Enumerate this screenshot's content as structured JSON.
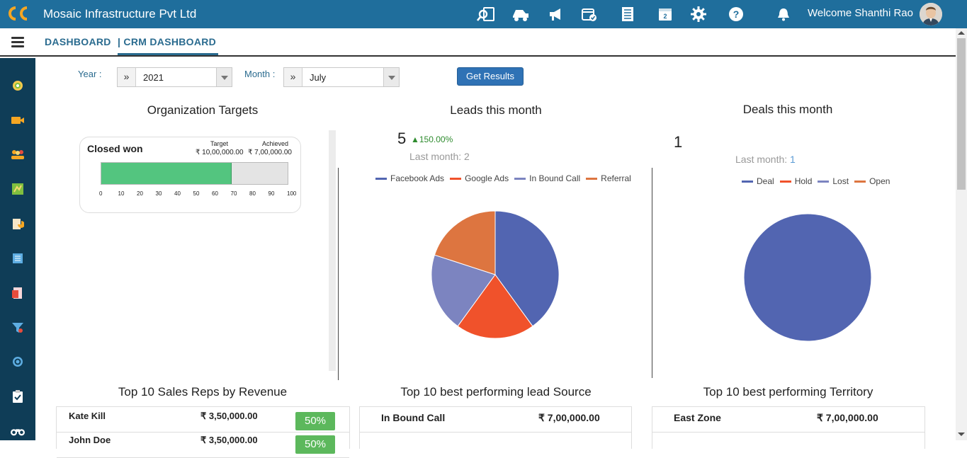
{
  "app": {
    "company": "Mosaic Infrastructure Pvt Ltd",
    "welcome": "Welcome Shanthi Rao"
  },
  "topbar_icons": [
    "search-document-icon",
    "truck-icon",
    "megaphone-icon",
    "calendar-check-icon",
    "list-icon",
    "calendar-icon",
    "gear-icon",
    "help-icon",
    "bell-icon"
  ],
  "nav": {
    "dashboard": "DASHBOARD",
    "crm_dashboard": "| CRM DASHBOARD"
  },
  "filters": {
    "year_label": "Year :",
    "year_value": "2021",
    "month_label": "Month :",
    "month_value": "July",
    "submit": "Get Results",
    "prefix_glyph": "»"
  },
  "org_targets": {
    "title": "Organization Targets",
    "card_title": "Closed won",
    "target_label": "Target",
    "achieved_label": "Achieved",
    "target_value": "₹ 10,00,000.00",
    "achieved_value": "₹ 7,00,000.00",
    "progress_percent": 70,
    "ticks": [
      "0",
      "10",
      "20",
      "30",
      "40",
      "50",
      "60",
      "70",
      "80",
      "90",
      "100"
    ]
  },
  "leads": {
    "title": "Leads this month",
    "count": "5",
    "change": "▲150.00%",
    "last_month": "Last month: 2",
    "legend": [
      {
        "name": "Facebook Ads",
        "color": "#5265b1"
      },
      {
        "name": "Google Ads",
        "color": "#f0522b"
      },
      {
        "name": "In Bound Call",
        "color": "#7c84c0"
      },
      {
        "name": "Referral",
        "color": "#dd7540"
      }
    ]
  },
  "deals": {
    "title": "Deals this month",
    "count": "1",
    "last_month_label": "Last month:",
    "last_month_value": "1",
    "legend": [
      {
        "name": "Deal",
        "color": "#5265b1"
      },
      {
        "name": "Hold",
        "color": "#f0522b"
      },
      {
        "name": "Lost",
        "color": "#7c84c0"
      },
      {
        "name": "Open",
        "color": "#dd7540"
      }
    ]
  },
  "chart_data": [
    {
      "type": "pie",
      "labels": [
        "Facebook Ads",
        "Google Ads",
        "In Bound Call",
        "Referral"
      ],
      "values": [
        2,
        1,
        1,
        1
      ],
      "colors": [
        "#5265b1",
        "#f0522b",
        "#7c84c0",
        "#dd7540"
      ]
    },
    {
      "type": "pie",
      "labels": [
        "Deal",
        "Hold",
        "Lost",
        "Open"
      ],
      "values": [
        1,
        0,
        0,
        0
      ],
      "colors": [
        "#5265b1",
        "#f0522b",
        "#7c84c0",
        "#dd7540"
      ]
    }
  ],
  "sales_reps": {
    "title": "Top 10 Sales Reps by Revenue",
    "rows": [
      {
        "name": "Kate Kill",
        "amount": "₹ 3,50,000.00",
        "pct": "50%"
      },
      {
        "name": "John Doe",
        "amount": "₹ 3,50,000.00",
        "pct": "50%"
      }
    ]
  },
  "lead_sources": {
    "title": "Top 10 best performing lead Source",
    "rows": [
      {
        "name": "In Bound Call",
        "amount": "₹ 7,00,000.00"
      }
    ]
  },
  "territory": {
    "title": "Top 10 best performing Territory",
    "rows": [
      {
        "name": "East Zone",
        "amount": "₹ 7,00,000.00"
      }
    ]
  }
}
